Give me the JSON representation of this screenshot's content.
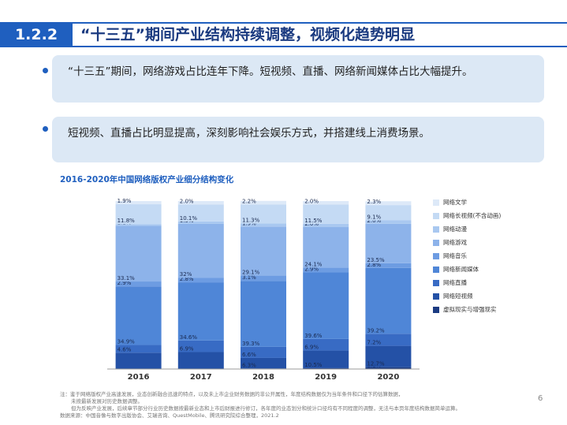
{
  "header": {
    "number": "1.2.2",
    "title": "“十三五”期间产业结构持续调整，视频化趋势明显"
  },
  "bullets": [
    "“十三五”期间，网络游戏占比连年下降。短视频、直播、网络新闻媒体占比大幅提升。",
    "短视频、直播占比明显提高，深刻影响社会娱乐方式，并搭建线上消费场景。"
  ],
  "chart_data": {
    "type": "stacked_bar",
    "title": "2016-2020年中国网络版权产业细分结构变化",
    "categories": [
      "2016",
      "2017",
      "2018",
      "2019",
      "2020"
    ],
    "ylim": [
      0,
      100
    ],
    "series": [
      {
        "name": "虚拟现实与增强现实",
        "color": "#1b3b82",
        "values": [
          0.1,
          0.1,
          0.3,
          0.5,
          1.1
        ],
        "value_labels": [
          "0.1%",
          "0.1%",
          "0.3%",
          "0.5%",
          "1.1%"
        ]
      },
      {
        "name": "网络短视频",
        "color": "#2451a6",
        "values": [
          9.6,
          10,
          6.3,
          10.5,
          12.7
        ],
        "value_labels": [
          null,
          null,
          "6.3%",
          "10.5%",
          "12.7%"
        ]
      },
      {
        "name": "网络直播",
        "color": "#386bc4",
        "values": [
          4.6,
          6.9,
          6.6,
          6.9,
          7.2
        ],
        "value_labels": [
          "4.6%",
          "6.9%",
          "6.6%",
          "6.9%",
          "7.2%"
        ]
      },
      {
        "name": "网络新闻媒体",
        "color": "#4f86d7",
        "values": [
          34.9,
          34.6,
          39.3,
          39.6,
          39.2
        ],
        "value_labels": [
          "34.9%",
          "34.6%",
          "39.3%",
          "39.6%",
          "39.2%"
        ]
      },
      {
        "name": "网络音乐",
        "color": "#6d9ce2",
        "values": [
          2.9,
          2.8,
          3.1,
          2.9,
          2.8
        ],
        "value_labels": [
          "2.9%",
          "2.8%",
          "3.1%",
          "2.9%",
          "2.8%"
        ]
      },
      {
        "name": "网络游戏",
        "color": "#8db3ea",
        "values": [
          33.1,
          32,
          29.1,
          24.1,
          23.5
        ],
        "value_labels": [
          "33.1%",
          "32%",
          "29.1%",
          "24.1%",
          "23.5%"
        ]
      },
      {
        "name": "网络动漫",
        "color": "#a9c8f0",
        "values": [
          1.1,
          1.5,
          1.9,
          2.0,
          2.0
        ],
        "value_labels": [
          "1.1%",
          "1.5%",
          "1.9%",
          "2.0%",
          "2.0%"
        ]
      },
      {
        "name": "网络长视频(不含动画)",
        "color": "#c4daf4",
        "values": [
          11.8,
          10.1,
          11.3,
          11.5,
          9.1
        ],
        "value_labels": [
          "11.8%",
          "10.1%",
          "11.3%",
          "11.5%",
          "9.1%"
        ]
      },
      {
        "name": "网络文学",
        "color": "#dde9f8",
        "values": [
          1.9,
          2.0,
          2.2,
          2.0,
          2.3
        ],
        "value_labels": [
          "1.9%",
          "2.0%",
          "2.2%",
          "2.0%",
          "2.3%"
        ]
      }
    ]
  },
  "footnotes": [
    "注：鉴于网络版权产业高速发展，业态创新融合迅速的特点，以及未上市企业财务数据的非公开属性，年度结构数据仅为当年条件和口径下的估算数据，",
    "未按最新发展对历史数据调整。",
    "但为反映产业发展，后续章节部分行业历史数据按最新业态和上市后财报进行修订，各年度的业态划分和统计口径均有不同程度的调整，无法与本页年度结构数据简单运算。",
    "数据来源：中国音像与数字出版协会、艾瑞咨询、QuestMobile、腾讯研究院综合整理，2021.2"
  ],
  "page_number": "6"
}
